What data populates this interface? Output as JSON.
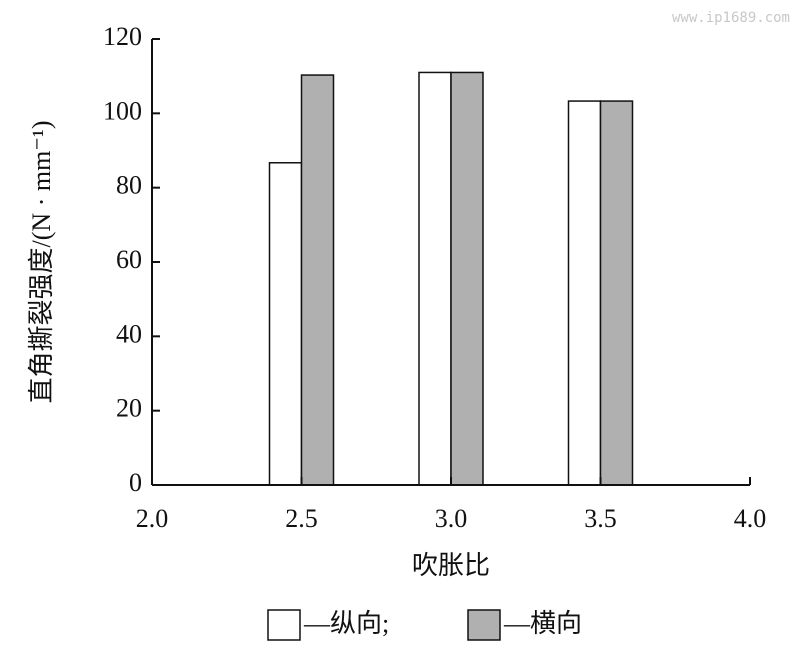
{
  "chart_data": {
    "type": "bar",
    "watermark": "www.ip1689.com",
    "xlabel": "吹胀比",
    "ylabel": "直角撕裂强度/(N · mm⁻¹)",
    "x": [
      2.5,
      3.0,
      3.5
    ],
    "series": [
      {
        "name": "—纵向;",
        "color": "#ffffff",
        "values": [
          86.7,
          111,
          103.3
        ]
      },
      {
        "name": "—横向",
        "color": "#b0b0b0",
        "values": [
          110.3,
          111,
          103.3
        ]
      }
    ],
    "xlim": [
      2,
      4
    ],
    "xticks": [
      {
        "value": 2,
        "label": "2.0"
      },
      {
        "value": 2.5,
        "label": "2.5"
      },
      {
        "value": 3,
        "label": "3.0"
      },
      {
        "value": 3.5,
        "label": "3.5"
      },
      {
        "value": 4,
        "label": "4.0"
      }
    ],
    "ylim": [
      0,
      120
    ],
    "yticks": [
      0,
      20,
      40,
      60,
      80,
      100,
      120
    ],
    "grid": false
  }
}
